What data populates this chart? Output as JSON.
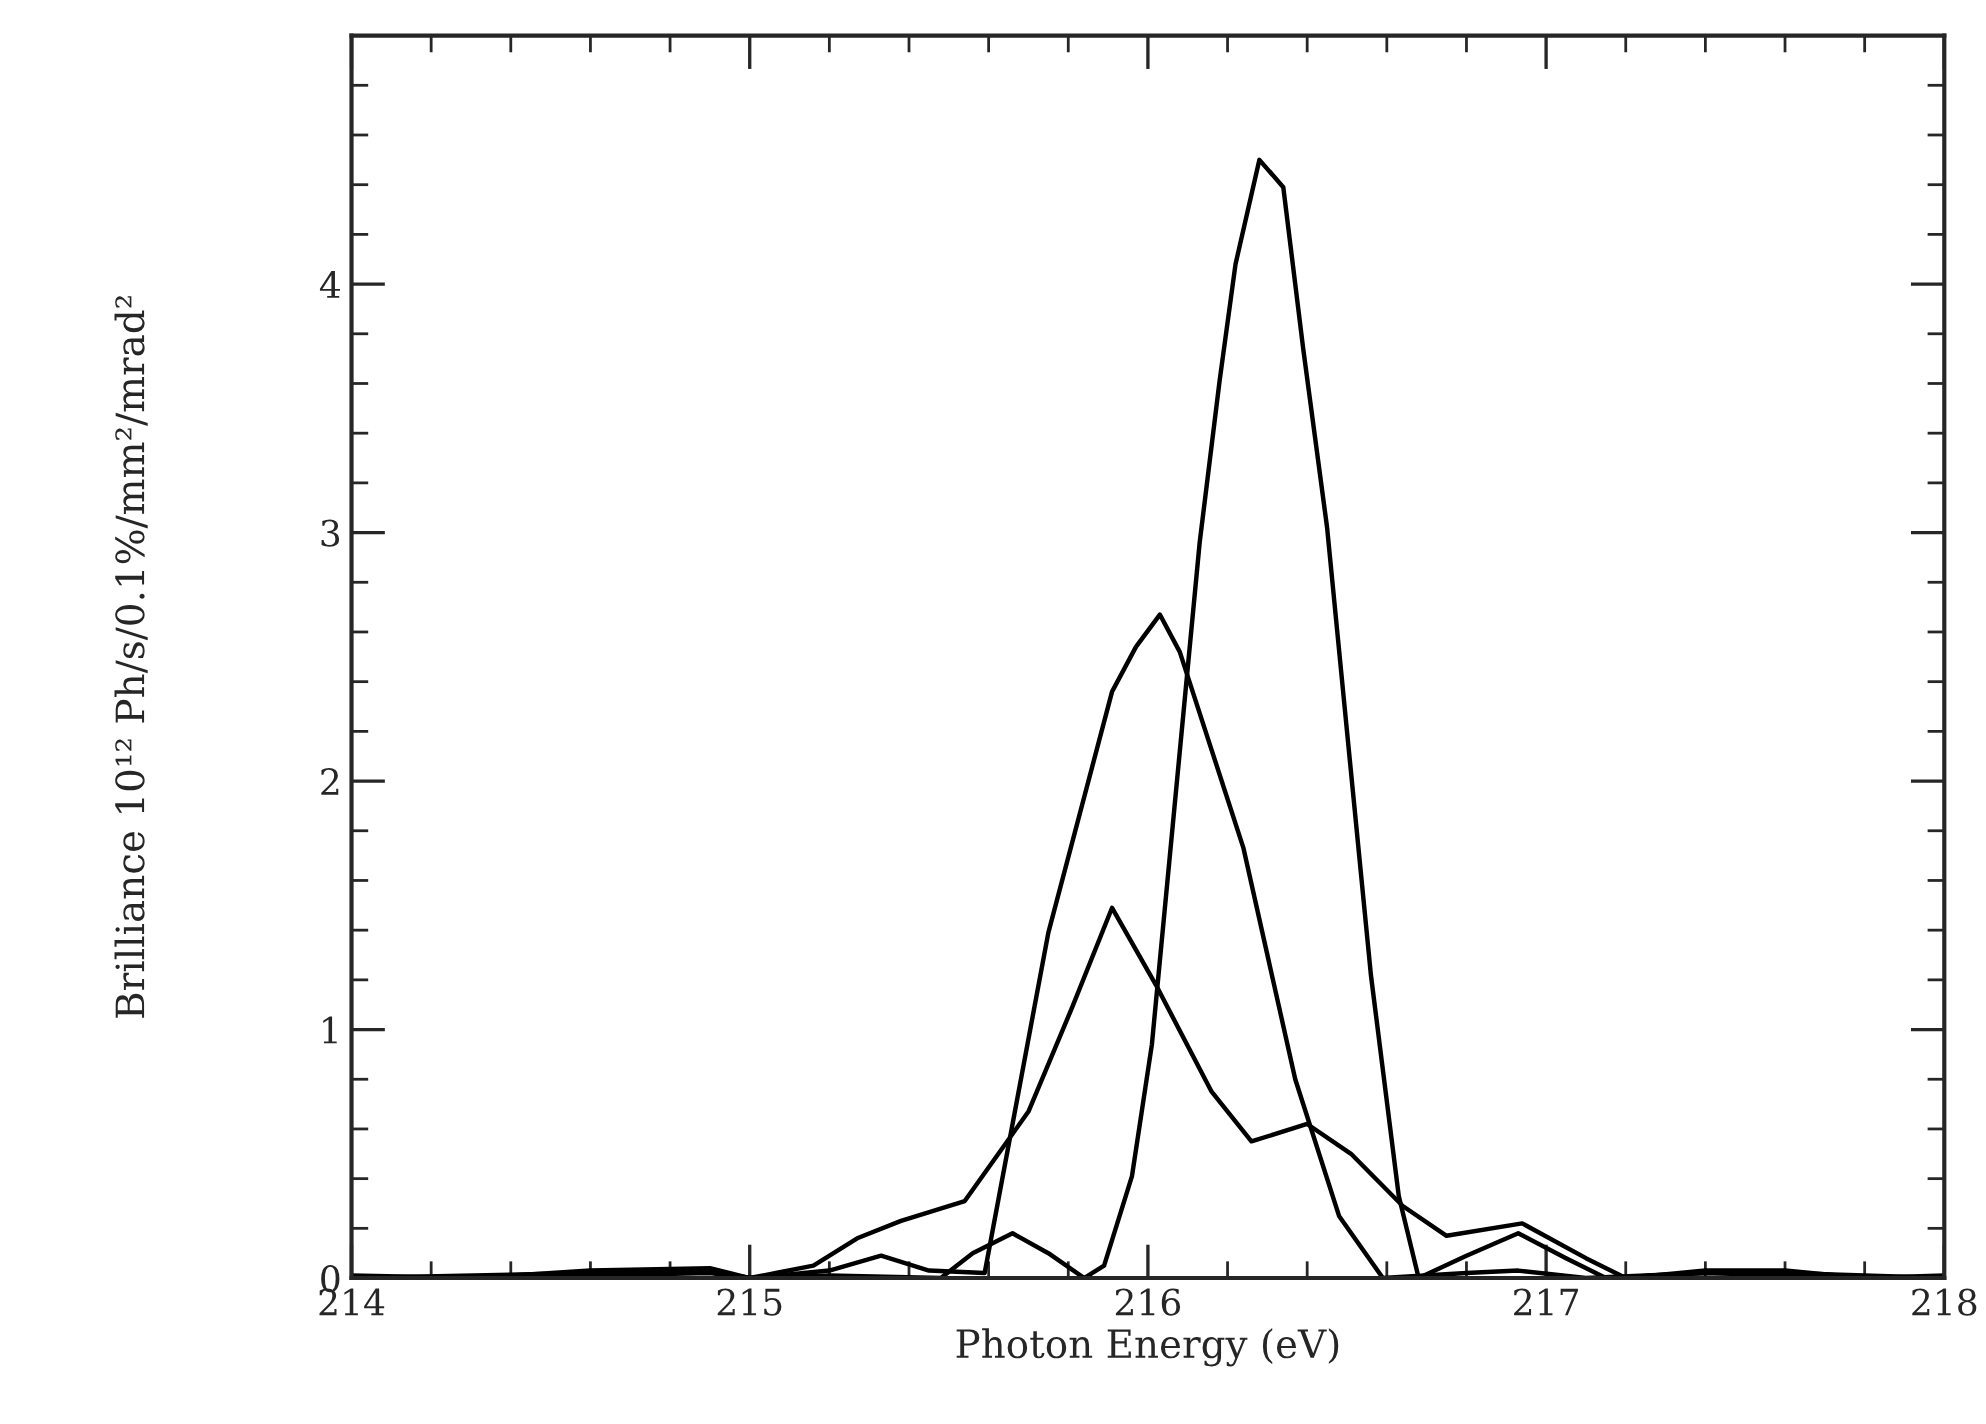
{
  "chart_data": {
    "type": "line",
    "xlabel": "Photon Energy (eV)",
    "ylabel": "Brilliance 10¹² Ph/s/0.1%/mm²/mrad²",
    "xlim": [
      214,
      218
    ],
    "ylim": [
      0,
      5
    ],
    "xticks": [
      214,
      {
        "value": 214.2,
        "label": null
      },
      {
        "value": 214.4,
        "label": null
      },
      {
        "value": 214.6,
        "label": null
      },
      {
        "value": 214.8,
        "label": null
      },
      215,
      {
        "value": 215.2,
        "label": null
      },
      {
        "value": 215.4,
        "label": null
      },
      {
        "value": 215.6,
        "label": null
      },
      {
        "value": 215.8,
        "label": null
      },
      216,
      {
        "value": 216.2,
        "label": null
      },
      {
        "value": 216.4,
        "label": null
      },
      {
        "value": 216.6,
        "label": null
      },
      {
        "value": 216.8,
        "label": null
      },
      217,
      {
        "value": 217.2,
        "label": null
      },
      {
        "value": 217.4,
        "label": null
      },
      {
        "value": 217.6,
        "label": null
      },
      {
        "value": 217.8,
        "label": null
      },
      218
    ],
    "yticks": [
      0,
      {
        "value": 0.2,
        "label": null
      },
      {
        "value": 0.4,
        "label": null
      },
      {
        "value": 0.6,
        "label": null
      },
      {
        "value": 0.8,
        "label": null
      },
      1,
      {
        "value": 1.2,
        "label": null
      },
      {
        "value": 1.4,
        "label": null
      },
      {
        "value": 1.6,
        "label": null
      },
      {
        "value": 1.8,
        "label": null
      },
      2,
      {
        "value": 2.2,
        "label": null
      },
      {
        "value": 2.4,
        "label": null
      },
      {
        "value": 2.6,
        "label": null
      },
      {
        "value": 2.8,
        "label": null
      },
      3,
      {
        "value": 3.2,
        "label": null
      },
      {
        "value": 3.4,
        "label": null
      },
      {
        "value": 3.6,
        "label": null
      },
      {
        "value": 3.8,
        "label": null
      },
      4,
      {
        "value": 4.2,
        "label": null
      },
      {
        "value": 4.4,
        "label": null
      },
      {
        "value": 4.6,
        "label": null
      },
      {
        "value": 4.8,
        "label": null
      }
    ],
    "grid": false,
    "legend": false,
    "marker": "none",
    "line_style": "solid",
    "series": [
      {
        "color": "#000000",
        "x": [
          214,
          214.6,
          214.9,
          215.0,
          215.2,
          215.48,
          215.56,
          215.66,
          215.75,
          215.84,
          215.89,
          215.96,
          216.01,
          216.13,
          216.18,
          216.22,
          216.28,
          216.34,
          216.39,
          216.45,
          216.5,
          216.56,
          216.63,
          216.68,
          216.8,
          216.93,
          217.05,
          217.15,
          217.4,
          217.6,
          218
        ],
        "values": [
          0,
          0.01,
          0.02,
          0,
          0.01,
          0,
          0.1,
          0.18,
          0.1,
          0,
          0.05,
          0.41,
          0.94,
          2.96,
          3.61,
          4.08,
          4.5,
          4.39,
          3.74,
          3.02,
          2.2,
          1.22,
          0.33,
          0,
          0.09,
          0.18,
          0.08,
          0,
          0.02,
          0.01,
          0
        ]
      },
      {
        "color": "#000000",
        "x": [
          214,
          214.6,
          214.9,
          215.0,
          215.2,
          215.33,
          215.45,
          215.59,
          215.75,
          215.91,
          215.97,
          216.03,
          216.08,
          216.24,
          216.37,
          216.48,
          216.59,
          216.8,
          216.93,
          217.1,
          217.4,
          217.6,
          218
        ],
        "values": [
          0,
          0.02,
          0.03,
          0,
          0.03,
          0.09,
          0.03,
          0.02,
          1.39,
          2.36,
          2.54,
          2.67,
          2.52,
          1.73,
          0.8,
          0.25,
          0,
          0.02,
          0.03,
          0,
          0.02,
          0.02,
          0
        ]
      },
      {
        "color": "#000000",
        "x": [
          214,
          214.3,
          214.6,
          214.9,
          215.0,
          215.16,
          215.27,
          215.38,
          215.54,
          215.7,
          215.81,
          215.91,
          216.02,
          216.16,
          216.26,
          216.4,
          216.51,
          216.64,
          216.75,
          216.94,
          217.1,
          217.2,
          217.4,
          217.6,
          217.8,
          218
        ],
        "values": [
          0.01,
          0,
          0.03,
          0.04,
          0,
          0.05,
          0.16,
          0.23,
          0.31,
          0.67,
          1.09,
          1.49,
          1.18,
          0.75,
          0.55,
          0.62,
          0.5,
          0.29,
          0.17,
          0.22,
          0.08,
          0,
          0.03,
          0.03,
          0,
          0.01
        ]
      }
    ]
  }
}
